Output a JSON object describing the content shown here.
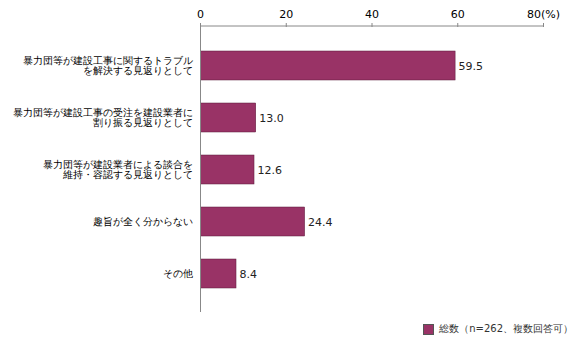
{
  "chart_data": {
    "type": "bar",
    "orientation": "horizontal",
    "categories": [
      "暴力団等が建設工事に関するトラブル\nを解決する見返りとして",
      "暴力団等が建設工事の受注を建設業者に\n割り振る見返りとして",
      "暴力団等が建設業者による談合を\n維持・容認する見返りとして",
      "趣旨が全く分からない",
      "その他"
    ],
    "series": [
      {
        "name": "総数（n=262、複数回答可）",
        "color": "#993366",
        "values": [
          59.5,
          13.0,
          12.6,
          24.4,
          8.4
        ],
        "value_labels": [
          "59.5",
          "13.0",
          "12.6",
          "24.4",
          "8.4"
        ]
      }
    ],
    "xlim": [
      0,
      80
    ],
    "xticks": [
      0,
      20,
      40,
      60,
      {
        "value": 80,
        "label": "80(%)"
      }
    ],
    "data_labels": true,
    "legend": "bottom-right",
    "grid": false
  }
}
